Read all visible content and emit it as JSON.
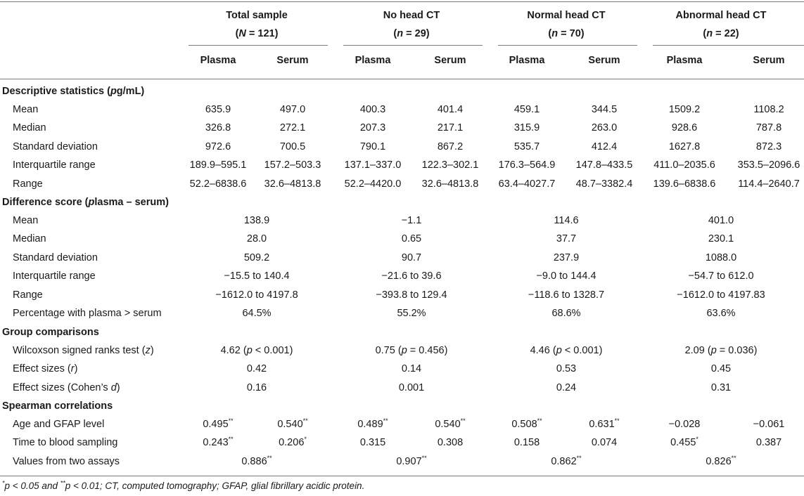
{
  "groups": [
    {
      "name": "Total sample",
      "n": "N = 121"
    },
    {
      "name": "No head CT",
      "n": "n = 29"
    },
    {
      "name": "Normal head CT",
      "n": "n = 70"
    },
    {
      "name": "Abnormal head CT",
      "n": "n = 22"
    }
  ],
  "subheaders": {
    "plasma": "Plasma",
    "serum": "Serum"
  },
  "sections": {
    "descriptive": "Descriptive statistics (pg/mL)",
    "difference": "Difference score (plasma – serum)",
    "comparisons": "Group comparisons",
    "spearman": "Spearman correlations"
  },
  "descriptive_rows": [
    {
      "label": "Mean",
      "values": [
        "635.9",
        "497.0",
        "400.3",
        "401.4",
        "459.1",
        "344.5",
        "1509.2",
        "1108.2"
      ]
    },
    {
      "label": "Median",
      "values": [
        "326.8",
        "272.1",
        "207.3",
        "217.1",
        "315.9",
        "263.0",
        "928.6",
        "787.8"
      ]
    },
    {
      "label": "Standard deviation",
      "values": [
        "972.6",
        "700.5",
        "790.1",
        "867.2",
        "535.7",
        "412.4",
        "1627.8",
        "872.3"
      ]
    },
    {
      "label": "Interquartile range",
      "values": [
        "189.9–595.1",
        "157.2–503.3",
        "137.1–337.0",
        "122.3–302.1",
        "176.3–564.9",
        "147.8–433.5",
        "411.0–2035.6",
        "353.5–2096.6"
      ]
    },
    {
      "label": "Range",
      "values": [
        "52.2–6838.6",
        "32.6–4813.8",
        "52.2–4420.0",
        "32.6–4813.8",
        "63.4–4027.7",
        "48.7–3382.4",
        "139.6–6838.6",
        "114.4–2640.7"
      ]
    }
  ],
  "difference_rows": [
    {
      "label": "Mean",
      "values": [
        "138.9",
        "−1.1",
        "114.6",
        "401.0"
      ]
    },
    {
      "label": "Median",
      "values": [
        "28.0",
        "0.65",
        "37.7",
        "230.1"
      ]
    },
    {
      "label": "Standard deviation",
      "values": [
        "509.2",
        "90.7",
        "237.9",
        "1088.0"
      ]
    },
    {
      "label": "Interquartile range",
      "values": [
        "−15.5 to 140.4",
        "−21.6 to 39.6",
        "−9.0 to 144.4",
        "−54.7 to 612.0"
      ]
    },
    {
      "label": "Range",
      "values": [
        "−1612.0 to 4197.8",
        "−393.8 to 129.4",
        "−118.6 to 1328.7",
        "−1612.0 to 4197.83"
      ]
    },
    {
      "label": "Percentage with plasma > serum",
      "values": [
        "64.5%",
        "55.2%",
        "68.6%",
        "63.6%"
      ]
    }
  ],
  "comparison_rows": [
    {
      "label": "Wilcoxson signed ranks test (z)",
      "values": [
        "4.62 (p < 0.001)",
        "0.75 (p = 0.456)",
        "4.46 (p < 0.001)",
        "2.09 (p = 0.036)"
      ]
    },
    {
      "label": "Effect sizes (r)",
      "values": [
        "0.42",
        "0.14",
        "0.53",
        "0.45"
      ]
    },
    {
      "label": "Effect sizes (Cohen’s d)",
      "values": [
        "0.16",
        "0.001",
        "0.24",
        "0.31"
      ]
    }
  ],
  "spearman_rows": [
    {
      "label": "Age and GFAP level",
      "values": [
        "0.495**",
        "0.540**",
        "0.489**",
        "0.540**",
        "0.508**",
        "0.631**",
        "−0.028",
        "−0.061"
      ]
    },
    {
      "label": "Time to blood sampling",
      "values": [
        "0.243**",
        "0.206*",
        "0.315",
        "0.308",
        "0.158",
        "0.074",
        "0.455*",
        "0.387"
      ]
    }
  ],
  "assay_row": {
    "label": "Values from two assays",
    "values": [
      "0.886**",
      "0.907**",
      "0.862**",
      "0.826**"
    ]
  },
  "footnote": "*p < 0.05 and **p < 0.01; CT, computed tomography; GFAP, glial fibrillary acidic protein."
}
